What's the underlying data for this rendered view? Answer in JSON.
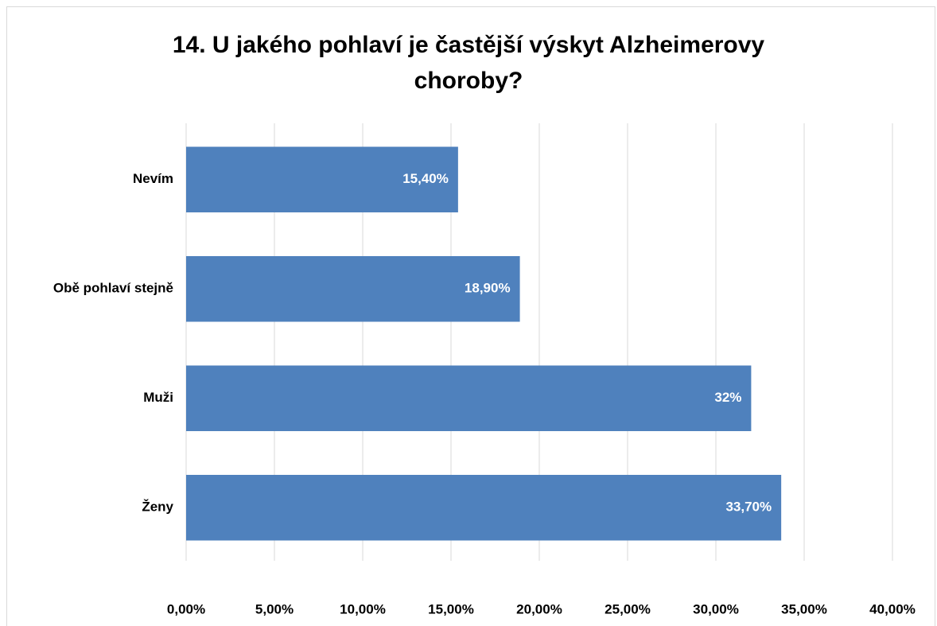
{
  "chart_data": {
    "type": "bar",
    "orientation": "horizontal",
    "title": "14. U jakého pohlaví je častější výskyt Alzheimerovy choroby?",
    "categories": [
      "Nevím",
      "Obě pohlaví stejně",
      "Muži",
      "Ženy"
    ],
    "values": [
      15.4,
      18.9,
      32,
      33.7
    ],
    "value_labels": [
      "15,40%",
      "18,90%",
      "32%",
      "33,70%"
    ],
    "color": "#4f81bd",
    "xlim": [
      0,
      40
    ],
    "xticks": [
      {
        "value": 0,
        "label": "0,00%"
      },
      {
        "value": 5,
        "label": "5,00%"
      },
      {
        "value": 10,
        "label": "10,00%"
      },
      {
        "value": 15,
        "label": "15,00%"
      },
      {
        "value": 20,
        "label": "20,00%"
      },
      {
        "value": 25,
        "label": "25,00%"
      },
      {
        "value": 30,
        "label": "30,00%"
      },
      {
        "value": 35,
        "label": "35,00%"
      },
      {
        "value": 40,
        "label": "40,00%"
      }
    ],
    "grid": true
  }
}
